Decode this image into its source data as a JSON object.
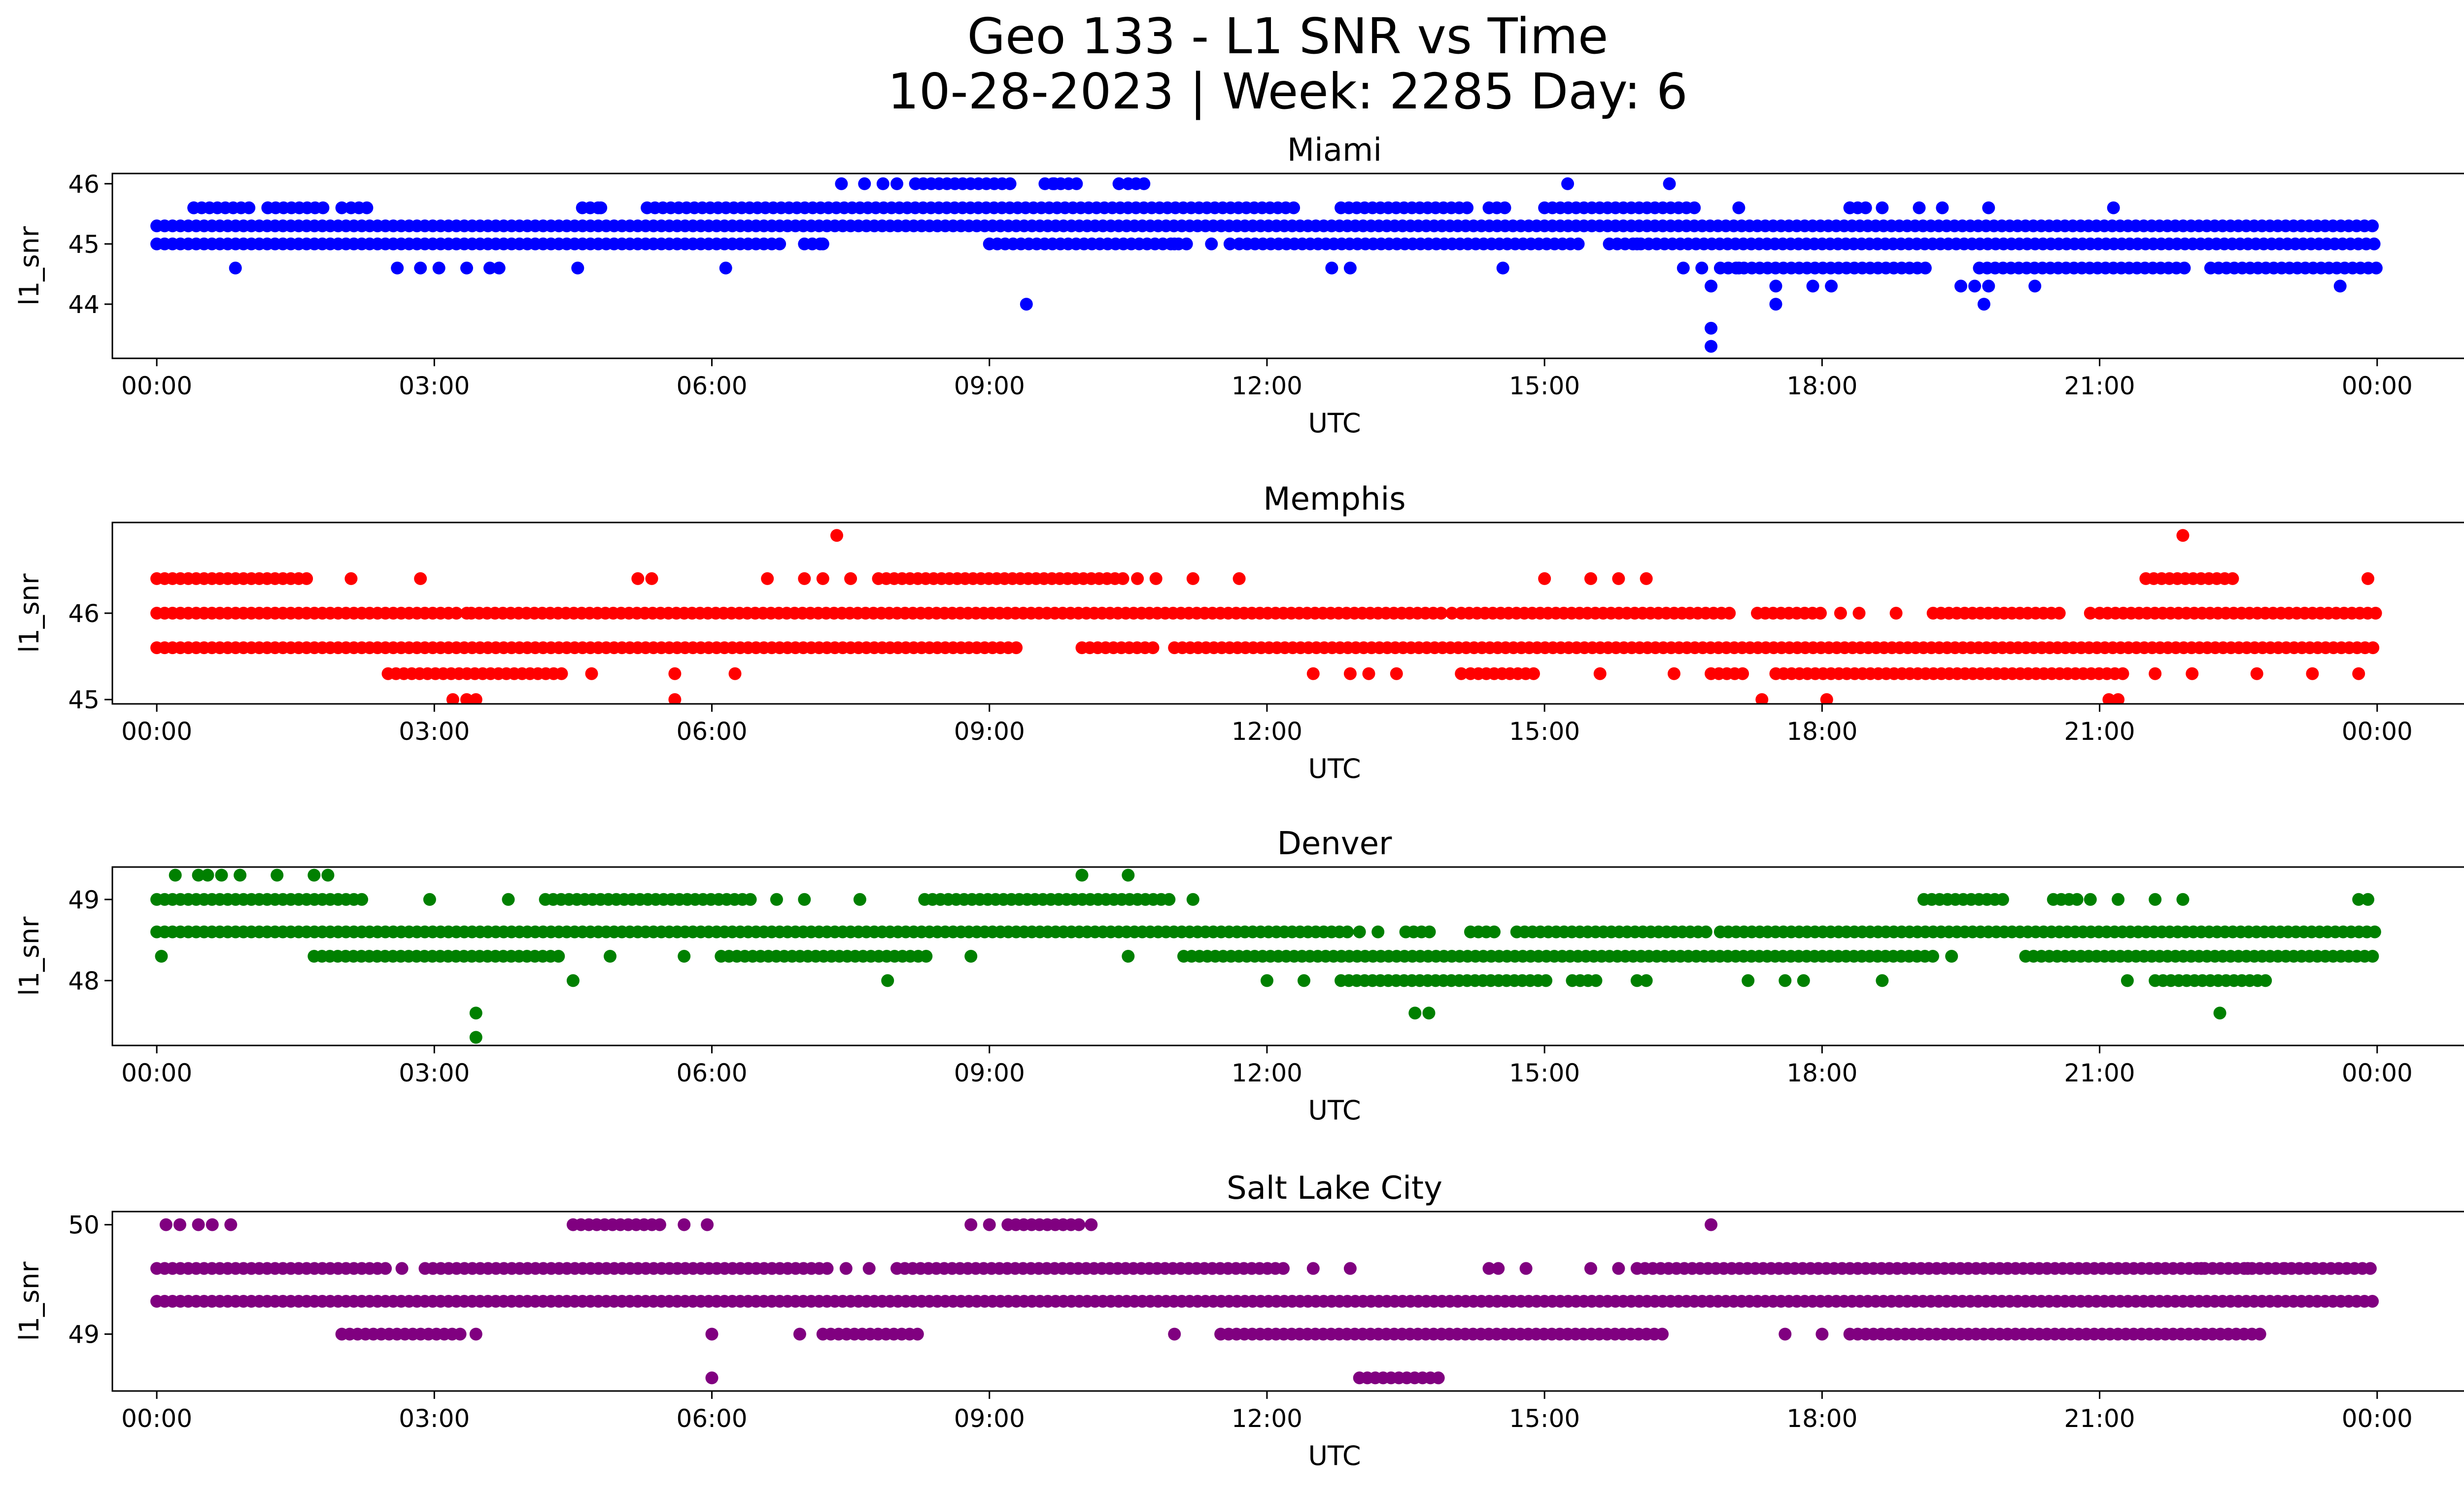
{
  "title_line1": "Geo 133 - L1 SNR vs Time",
  "title_line2": "10-28-2023 | Week: 2285 Day: 6",
  "chart_data": [
    {
      "type": "scatter",
      "title": "Miami",
      "xlabel": "UTC",
      "ylabel": "l1_snr",
      "color": "#0000ff",
      "xlim": [
        -0.48,
        25.94
      ],
      "ylim": [
        43.1,
        46.17
      ],
      "x_ticks": [
        0,
        3,
        6,
        9,
        12,
        15,
        18,
        21,
        24
      ],
      "x_tick_labels": [
        "00:00",
        "03:00",
        "06:00",
        "09:00",
        "12:00",
        "15:00",
        "18:00",
        "21:00",
        "00:00"
      ],
      "y_ticks": [
        44,
        45,
        46
      ],
      "y_tick_labels": [
        "44",
        "45",
        "46"
      ],
      "bands": [
        {
          "y": 45.3,
          "segments": [
            [
              0,
              24
            ]
          ]
        },
        {
          "y": 45.0,
          "segments": [
            [
              0,
              6.8
            ],
            [
              7.0,
              7.2
            ],
            [
              9.0,
              11.2
            ],
            [
              11.7,
              15.4
            ],
            [
              15.7,
              24
            ]
          ]
        },
        {
          "y": 45.6,
          "segments": [
            [
              0.4,
              1.0
            ],
            [
              1.2,
              1.8
            ],
            [
              2.1,
              2.3
            ],
            [
              4.6,
              4.8
            ],
            [
              5.3,
              12.3
            ],
            [
              12.8,
              14.2
            ],
            [
              14.4,
              14.6
            ],
            [
              15.0,
              16.7
            ],
            [
              18.3,
              18.5
            ]
          ]
        },
        {
          "y": 44.6,
          "segments": [
            [
              16.9,
              19.2
            ],
            [
              19.7,
              22.0
            ],
            [
              22.2,
              24
            ]
          ]
        },
        {
          "y": 46.0,
          "segments": [
            [
              8.2,
              9.3
            ],
            [
              9.6,
              10.0
            ],
            [
              10.5,
              10.7
            ]
          ]
        }
      ],
      "points": [
        [
          0.85,
          44.6
        ],
        [
          2.6,
          44.6
        ],
        [
          2.85,
          44.6
        ],
        [
          3.05,
          44.6
        ],
        [
          3.35,
          44.6
        ],
        [
          3.6,
          44.6
        ],
        [
          3.7,
          44.6
        ],
        [
          4.55,
          44.6
        ],
        [
          6.15,
          44.6
        ],
        [
          7.4,
          46.0
        ],
        [
          7.65,
          46.0
        ],
        [
          7.85,
          46.0
        ],
        [
          8.0,
          46.0
        ],
        [
          9.7,
          46.0
        ],
        [
          10.4,
          46.0
        ],
        [
          15.25,
          46.0
        ],
        [
          16.35,
          46.0
        ],
        [
          9.4,
          44.0
        ],
        [
          12.7,
          44.6
        ],
        [
          12.9,
          44.6
        ],
        [
          14.55,
          44.6
        ],
        [
          16.5,
          44.6
        ],
        [
          16.7,
          44.6
        ],
        [
          16.8,
          44.3
        ],
        [
          16.8,
          43.6
        ],
        [
          16.8,
          43.3
        ],
        [
          17.1,
          44.6
        ],
        [
          17.5,
          44.3
        ],
        [
          17.5,
          44.0
        ],
        [
          17.9,
          44.3
        ],
        [
          18.1,
          44.3
        ],
        [
          18.3,
          45.6
        ],
        [
          18.65,
          45.6
        ],
        [
          19.05,
          45.6
        ],
        [
          19.3,
          45.6
        ],
        [
          19.5,
          44.3
        ],
        [
          19.8,
          45.6
        ],
        [
          19.65,
          44.3
        ],
        [
          19.8,
          44.3
        ],
        [
          19.75,
          44.0
        ],
        [
          20.3,
          44.3
        ],
        [
          21.15,
          45.6
        ],
        [
          23.6,
          44.3
        ],
        [
          7.2,
          45.0
        ],
        [
          11.0,
          45.0
        ],
        [
          11.4,
          45.0
        ],
        [
          11.6,
          45.0
        ],
        [
          4.8,
          45.6
        ],
        [
          16.0,
          45.0
        ],
        [
          17.1,
          45.6
        ],
        [
          0.4,
          45.6
        ],
        [
          1.2,
          45.6
        ],
        [
          2.0,
          45.6
        ]
      ]
    },
    {
      "type": "scatter",
      "title": "Memphis",
      "xlabel": "UTC",
      "ylabel": "l1_snr",
      "color": "#ff0000",
      "xlim": [
        -0.48,
        25.94
      ],
      "ylim": [
        44.95,
        47.05
      ],
      "x_ticks": [
        0,
        3,
        6,
        9,
        12,
        15,
        18,
        21,
        24
      ],
      "x_tick_labels": [
        "00:00",
        "03:00",
        "06:00",
        "09:00",
        "12:00",
        "15:00",
        "18:00",
        "21:00",
        "00:00"
      ],
      "y_ticks": [
        45,
        46
      ],
      "y_tick_labels": [
        "45",
        "46"
      ],
      "bands": [
        {
          "y": 46.0,
          "segments": [
            [
              0,
              3.3
            ],
            [
              3.4,
              13.9
            ],
            [
              14.1,
              17.0
            ],
            [
              17.3,
              18.0
            ],
            [
              19.2,
              20.6
            ],
            [
              21.0,
              24
            ]
          ]
        },
        {
          "y": 45.6,
          "segments": [
            [
              0,
              9.3
            ],
            [
              10.0,
              10.8
            ],
            [
              11.0,
              24
            ]
          ]
        },
        {
          "y": 45.3,
          "segments": [
            [
              2.5,
              4.4
            ],
            [
              14.2,
              14.9
            ],
            [
              16.8,
              17.2
            ],
            [
              17.5,
              21.3
            ]
          ]
        },
        {
          "y": 46.4,
          "segments": [
            [
              0,
              1.7
            ],
            [
              7.8,
              10.5
            ],
            [
              21.5,
              22.5
            ]
          ]
        }
      ],
      "points": [
        [
          2.1,
          46.4
        ],
        [
          2.85,
          46.4
        ],
        [
          5.2,
          46.4
        ],
        [
          5.35,
          46.4
        ],
        [
          6.6,
          46.4
        ],
        [
          7.0,
          46.4
        ],
        [
          7.2,
          46.4
        ],
        [
          7.5,
          46.4
        ],
        [
          10.6,
          46.4
        ],
        [
          10.8,
          46.4
        ],
        [
          11.2,
          46.4
        ],
        [
          11.7,
          46.4
        ],
        [
          15.0,
          46.4
        ],
        [
          15.5,
          46.4
        ],
        [
          15.8,
          46.4
        ],
        [
          16.1,
          46.4
        ],
        [
          7.35,
          46.9
        ],
        [
          21.9,
          46.9
        ],
        [
          23.9,
          46.4
        ],
        [
          3.2,
          45.0
        ],
        [
          3.35,
          45.0
        ],
        [
          3.45,
          45.0
        ],
        [
          5.6,
          45.0
        ],
        [
          17.35,
          45.0
        ],
        [
          18.05,
          45.0
        ],
        [
          21.1,
          45.0
        ],
        [
          21.2,
          45.0
        ],
        [
          4.7,
          45.3
        ],
        [
          5.6,
          45.3
        ],
        [
          6.25,
          45.3
        ],
        [
          12.5,
          45.3
        ],
        [
          12.9,
          45.3
        ],
        [
          13.1,
          45.3
        ],
        [
          13.4,
          45.3
        ],
        [
          14.1,
          45.3
        ],
        [
          15.6,
          45.3
        ],
        [
          16.4,
          45.3
        ],
        [
          21.6,
          45.3
        ],
        [
          22.0,
          45.3
        ],
        [
          22.7,
          45.3
        ],
        [
          23.3,
          45.3
        ],
        [
          23.8,
          45.3
        ],
        [
          18.2,
          46.0
        ],
        [
          18.4,
          46.0
        ],
        [
          18.8,
          46.0
        ],
        [
          20.9,
          46.0
        ],
        [
          14.0,
          46.0
        ],
        [
          3.35,
          46.0
        ]
      ]
    },
    {
      "type": "scatter",
      "title": "Denver",
      "xlabel": "UTC",
      "ylabel": "l1_snr",
      "color": "#008000",
      "xlim": [
        -0.48,
        25.94
      ],
      "ylim": [
        47.2,
        49.4
      ],
      "x_ticks": [
        0,
        3,
        6,
        9,
        12,
        15,
        18,
        21,
        24
      ],
      "x_tick_labels": [
        "00:00",
        "03:00",
        "06:00",
        "09:00",
        "12:00",
        "15:00",
        "18:00",
        "21:00",
        "00:00"
      ],
      "y_ticks": [
        48,
        49
      ],
      "y_tick_labels": [
        "48",
        "49"
      ],
      "bands": [
        {
          "y": 48.6,
          "segments": [
            [
              0,
              12.9
            ],
            [
              13.5,
              13.8
            ],
            [
              14.2,
              14.5
            ],
            [
              14.7,
              16.8
            ],
            [
              16.9,
              24
            ]
          ]
        },
        {
          "y": 49.0,
          "segments": [
            [
              0,
              2.3
            ],
            [
              4.2,
              6.5
            ],
            [
              8.3,
              11.0
            ],
            [
              19.1,
              20.0
            ],
            [
              20.5,
              20.8
            ]
          ]
        },
        {
          "y": 48.3,
          "segments": [
            [
              1.7,
              4.4
            ],
            [
              6.1,
              8.4
            ],
            [
              11.1,
              19.2
            ],
            [
              20.2,
              24
            ]
          ]
        },
        {
          "y": 48.0,
          "segments": [
            [
              12.8,
              15.1
            ],
            [
              15.3,
              15.6
            ],
            [
              21.6,
              22.8
            ]
          ]
        }
      ],
      "points": [
        [
          0.2,
          49.3
        ],
        [
          0.45,
          49.3
        ],
        [
          0.55,
          49.3
        ],
        [
          0.7,
          49.3
        ],
        [
          0.9,
          49.3
        ],
        [
          1.3,
          49.3
        ],
        [
          1.7,
          49.3
        ],
        [
          1.85,
          49.3
        ],
        [
          10.0,
          49.3
        ],
        [
          10.5,
          49.3
        ],
        [
          0.05,
          48.3
        ],
        [
          2.95,
          49.0
        ],
        [
          3.8,
          49.0
        ],
        [
          6.7,
          49.0
        ],
        [
          7.0,
          49.0
        ],
        [
          7.6,
          49.0
        ],
        [
          11.2,
          49.0
        ],
        [
          20.9,
          49.0
        ],
        [
          21.2,
          49.0
        ],
        [
          21.6,
          49.0
        ],
        [
          21.9,
          49.0
        ],
        [
          23.8,
          49.0
        ],
        [
          23.9,
          49.0
        ],
        [
          4.9,
          48.3
        ],
        [
          5.7,
          48.3
        ],
        [
          10.5,
          48.3
        ],
        [
          4.5,
          48.0
        ],
        [
          7.9,
          48.0
        ],
        [
          12.0,
          48.0
        ],
        [
          12.4,
          48.0
        ],
        [
          16.0,
          48.0
        ],
        [
          16.1,
          48.0
        ],
        [
          17.2,
          48.0
        ],
        [
          17.6,
          48.0
        ],
        [
          17.8,
          48.0
        ],
        [
          18.65,
          48.0
        ],
        [
          21.3,
          48.0
        ],
        [
          3.45,
          47.6
        ],
        [
          3.45,
          47.3
        ],
        [
          13.6,
          47.6
        ],
        [
          13.75,
          47.6
        ],
        [
          22.3,
          47.6
        ],
        [
          8.8,
          48.3
        ],
        [
          19.4,
          48.3
        ],
        [
          13.2,
          48.6
        ],
        [
          13.0,
          48.6
        ]
      ]
    },
    {
      "type": "scatter",
      "title": "Salt Lake City",
      "xlabel": "UTC",
      "ylabel": "l1_snr",
      "color": "#800080",
      "xlim": [
        -0.48,
        25.94
      ],
      "ylim": [
        48.48,
        50.12
      ],
      "x_ticks": [
        0,
        3,
        6,
        9,
        12,
        15,
        18,
        21,
        24
      ],
      "x_tick_labels": [
        "00:00",
        "03:00",
        "06:00",
        "09:00",
        "12:00",
        "15:00",
        "18:00",
        "21:00",
        "00:00"
      ],
      "y_ticks": [
        49,
        50
      ],
      "y_tick_labels": [
        "49",
        "50"
      ],
      "bands": [
        {
          "y": 49.3,
          "segments": [
            [
              0,
              24
            ]
          ]
        },
        {
          "y": 49.6,
          "segments": [
            [
              0,
              2.5
            ],
            [
              2.9,
              7.3
            ],
            [
              8.0,
              12.2
            ],
            [
              16.0,
              24
            ]
          ]
        },
        {
          "y": 49.0,
          "segments": [
            [
              2.0,
              3.3
            ],
            [
              7.2,
              8.3
            ],
            [
              11.5,
              16.3
            ],
            [
              18.3,
              22.8
            ]
          ]
        },
        {
          "y": 50.0,
          "segments": [
            [
              4.5,
              5.5
            ],
            [
              9.2,
              10.0
            ]
          ]
        },
        {
          "y": 48.6,
          "segments": [
            [
              13.0,
              13.9
            ]
          ]
        }
      ],
      "points": [
        [
          0.1,
          50.0
        ],
        [
          0.25,
          50.0
        ],
        [
          0.45,
          50.0
        ],
        [
          0.6,
          50.0
        ],
        [
          0.8,
          50.0
        ],
        [
          5.7,
          50.0
        ],
        [
          5.95,
          50.0
        ],
        [
          8.8,
          50.0
        ],
        [
          9.0,
          50.0
        ],
        [
          10.1,
          50.0
        ],
        [
          16.8,
          50.0
        ],
        [
          3.45,
          49.0
        ],
        [
          6.0,
          49.0
        ],
        [
          6.95,
          49.0
        ],
        [
          11.0,
          49.0
        ],
        [
          17.6,
          49.0
        ],
        [
          18.0,
          49.0
        ],
        [
          6.0,
          48.6
        ],
        [
          7.45,
          49.6
        ],
        [
          7.7,
          49.6
        ],
        [
          12.5,
          49.6
        ],
        [
          14.4,
          49.6
        ],
        [
          14.5,
          49.6
        ],
        [
          14.8,
          49.6
        ],
        [
          15.5,
          49.6
        ],
        [
          15.8,
          49.6
        ],
        [
          22.1,
          49.6
        ],
        [
          22.6,
          49.6
        ],
        [
          23.0,
          49.6
        ],
        [
          12.9,
          49.6
        ],
        [
          2.65,
          49.6
        ]
      ]
    }
  ]
}
